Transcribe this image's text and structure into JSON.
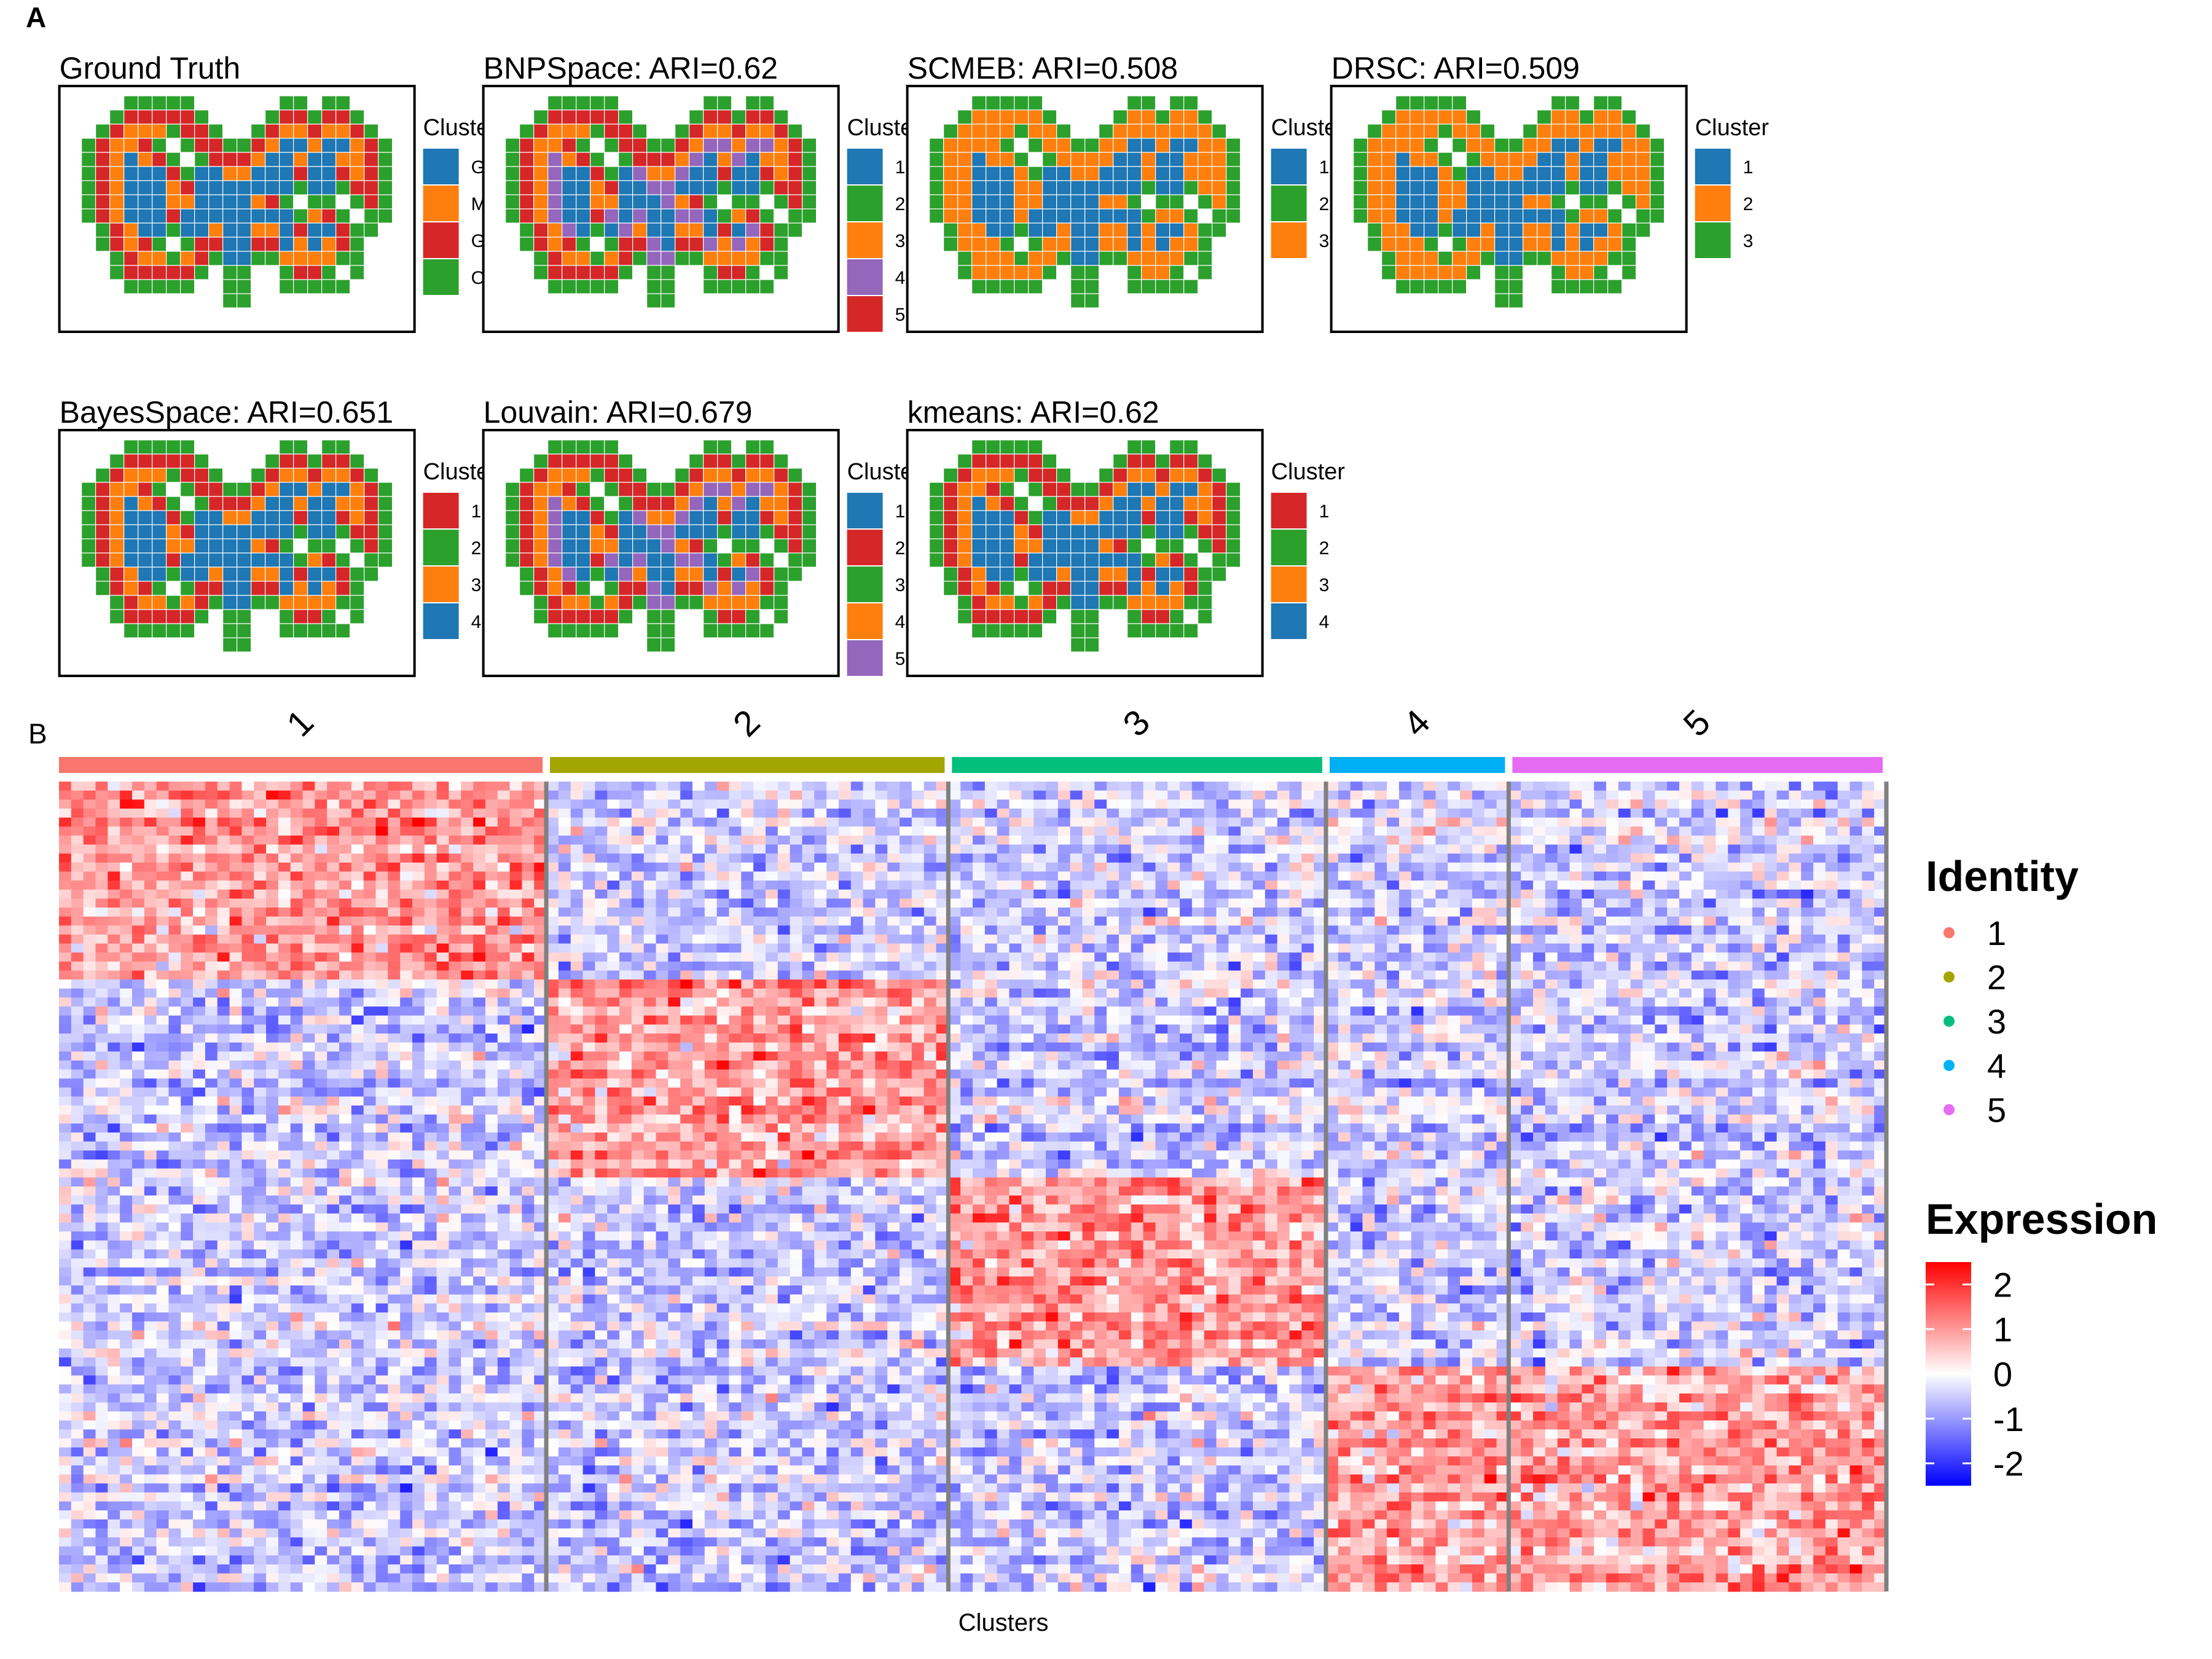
{
  "panels": {
    "a_label": "A",
    "b_label": "B"
  },
  "chart_data": [
    {
      "type": "heatmap",
      "subtype": "spatial-cluster-map",
      "title": "Ground Truth",
      "legend_title": "Cluster",
      "legend": [
        {
          "label": "GCL",
          "color": "#1f77b4"
        },
        {
          "label": "MCL",
          "color": "#ff7f0e"
        },
        {
          "label": "GL",
          "color": "#d62728"
        },
        {
          "label": "ONL",
          "color": "#2ca02c"
        }
      ],
      "layers_outer_to_inner": [
        "ONL",
        "GL",
        "MCL",
        "GCL"
      ]
    },
    {
      "type": "heatmap",
      "subtype": "spatial-cluster-map",
      "title": "BNPSpace: ARI=0.62",
      "method": "BNPSpace",
      "ari": 0.62,
      "legend_title": "Cluster",
      "legend": [
        {
          "label": "1",
          "color": "#1f77b4"
        },
        {
          "label": "2",
          "color": "#2ca02c"
        },
        {
          "label": "3",
          "color": "#ff7f0e"
        },
        {
          "label": "4",
          "color": "#9467bd"
        },
        {
          "label": "5",
          "color": "#d62728"
        }
      ],
      "layers_outer_to_inner": [
        "2",
        "5",
        "3",
        "4",
        "1"
      ]
    },
    {
      "type": "heatmap",
      "subtype": "spatial-cluster-map",
      "title": "SCMEB: ARI=0.508",
      "method": "SCMEB",
      "ari": 0.508,
      "legend_title": "Cluster",
      "legend": [
        {
          "label": "1",
          "color": "#1f77b4"
        },
        {
          "label": "2",
          "color": "#2ca02c"
        },
        {
          "label": "3",
          "color": "#ff7f0e"
        }
      ],
      "layers_outer_to_inner": [
        "2",
        "3",
        "3",
        "1"
      ]
    },
    {
      "type": "heatmap",
      "subtype": "spatial-cluster-map",
      "title": "DRSC: ARI=0.509",
      "method": "DRSC",
      "ari": 0.509,
      "legend_title": "Cluster",
      "legend": [
        {
          "label": "1",
          "color": "#1f77b4"
        },
        {
          "label": "2",
          "color": "#ff7f0e"
        },
        {
          "label": "3",
          "color": "#2ca02c"
        }
      ],
      "layers_outer_to_inner": [
        "3",
        "2",
        "2",
        "1"
      ]
    },
    {
      "type": "heatmap",
      "subtype": "spatial-cluster-map",
      "title": "BayesSpace: ARI=0.651",
      "method": "BayesSpace",
      "ari": 0.651,
      "legend_title": "Cluster",
      "legend": [
        {
          "label": "1",
          "color": "#d62728"
        },
        {
          "label": "2",
          "color": "#2ca02c"
        },
        {
          "label": "3",
          "color": "#ff7f0e"
        },
        {
          "label": "4",
          "color": "#1f77b4"
        }
      ],
      "layers_outer_to_inner": [
        "2",
        "1",
        "3",
        "4"
      ]
    },
    {
      "type": "heatmap",
      "subtype": "spatial-cluster-map",
      "title": "Louvain: ARI=0.679",
      "method": "Louvain",
      "ari": 0.679,
      "legend_title": "Cluster",
      "legend": [
        {
          "label": "1",
          "color": "#1f77b4"
        },
        {
          "label": "2",
          "color": "#d62728"
        },
        {
          "label": "3",
          "color": "#2ca02c"
        },
        {
          "label": "4",
          "color": "#ff7f0e"
        },
        {
          "label": "5",
          "color": "#9467bd"
        }
      ],
      "layers_outer_to_inner": [
        "3",
        "2",
        "4",
        "5",
        "1"
      ]
    },
    {
      "type": "heatmap",
      "subtype": "spatial-cluster-map",
      "title": "kmeans: ARI=0.62",
      "method": "kmeans",
      "ari": 0.62,
      "legend_title": "Cluster",
      "legend": [
        {
          "label": "1",
          "color": "#d62728"
        },
        {
          "label": "2",
          "color": "#2ca02c"
        },
        {
          "label": "3",
          "color": "#ff7f0e"
        },
        {
          "label": "4",
          "color": "#1f77b4"
        }
      ],
      "layers_outer_to_inner": [
        "2",
        "1",
        "3",
        "4"
      ]
    },
    {
      "type": "heatmap",
      "subtype": "gene-expression-heatmap",
      "xlabel": "Clusters",
      "clusters": [
        {
          "label": "1",
          "color": "#f8766d",
          "cell_share": 0.268
        },
        {
          "label": "2",
          "color": "#a3a500",
          "cell_share": 0.221
        },
        {
          "label": "3",
          "color": "#00bf7d",
          "cell_share": 0.205
        },
        {
          "label": "4",
          "color": "#00b0f6",
          "cell_share": 0.098
        },
        {
          "label": "5",
          "color": "#e76bf3",
          "cell_share": 0.208
        }
      ],
      "gene_block_shares": [
        0.245,
        0.245,
        0.23,
        0.28
      ],
      "row_blocks": [
        {
          "block": 1,
          "high_in_clusters": [
            "1"
          ]
        },
        {
          "block": 2,
          "high_in_clusters": [
            "2"
          ]
        },
        {
          "block": 3,
          "high_in_clusters": [
            "3"
          ]
        },
        {
          "block": 4,
          "high_in_clusters": [
            "4",
            "5"
          ]
        }
      ],
      "identity_legend_title": "Identity",
      "identity_legend": [
        "1",
        "2",
        "3",
        "4",
        "5"
      ],
      "color_legend_title": "Expression",
      "color_scale": {
        "low": "#0000ff",
        "mid": "#ffffff",
        "high": "#ff0000",
        "ticks": [
          "2",
          "1",
          "0",
          "-1",
          "-2"
        ],
        "range": [
          -2.5,
          2.5
        ]
      }
    }
  ]
}
